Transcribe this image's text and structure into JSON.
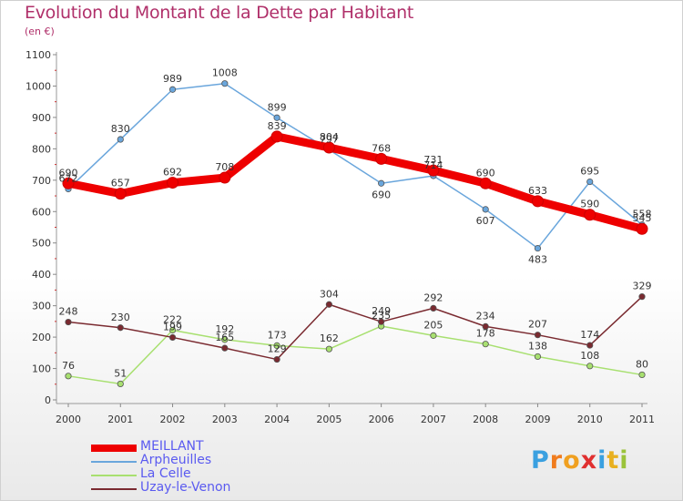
{
  "title": "Evolution du Montant de la Dette par Habitant",
  "subtitle": "(en €)",
  "logo": {
    "letters": [
      "P",
      "r",
      "o",
      "x",
      "i",
      "t",
      "i"
    ],
    "colors": [
      "#3aa0e0",
      "#f07c1e",
      "#f0a020",
      "#e03030",
      "#3aa0e0",
      "#e8b020",
      "#9bc33a"
    ]
  },
  "chart_data": {
    "type": "line",
    "x": [
      2000,
      2001,
      2002,
      2003,
      2004,
      2005,
      2006,
      2007,
      2008,
      2009,
      2010,
      2011
    ],
    "ylim": [
      0,
      1100
    ],
    "yticks": [
      0,
      100,
      200,
      300,
      400,
      500,
      600,
      700,
      800,
      900,
      1000,
      1100
    ],
    "grid": false,
    "legend": "bottom-left",
    "series": [
      {
        "name": "MEILLANT",
        "color": "#ee0000",
        "values": [
          690,
          657,
          692,
          708,
          839,
          804,
          768,
          731,
          690,
          633,
          590,
          545
        ],
        "labels": [
          "690",
          "657",
          "692",
          "708",
          "839",
          "804",
          "768",
          "731",
          "690",
          "633",
          "590",
          "545"
        ]
      },
      {
        "name": "Arpheuilles",
        "color": "#6aa6dc",
        "values": [
          672,
          830,
          989,
          1008,
          899,
          797,
          690,
          714,
          607,
          483,
          695,
          558
        ],
        "labels": [
          "672",
          "830",
          "989",
          "1008",
          "899",
          "797",
          "690",
          "714",
          "607",
          "483",
          "695",
          "558"
        ]
      },
      {
        "name": "La Celle",
        "color": "#a8e070",
        "values": [
          76,
          51,
          222,
          192,
          173,
          162,
          235,
          205,
          178,
          138,
          108,
          80
        ],
        "labels": [
          "76",
          "51",
          "222",
          "192",
          "173",
          "162",
          "235",
          "205",
          "178",
          "138",
          "108",
          "80"
        ]
      },
      {
        "name": "Uzay-le-Venon",
        "color": "#7a2a30",
        "values": [
          248,
          230,
          199,
          165,
          129,
          304,
          249,
          292,
          234,
          207,
          174,
          329
        ],
        "labels": [
          "248",
          "230",
          "199",
          "165",
          "129",
          "304",
          "249",
          "292",
          "234",
          "207",
          "174",
          "329"
        ]
      }
    ]
  }
}
